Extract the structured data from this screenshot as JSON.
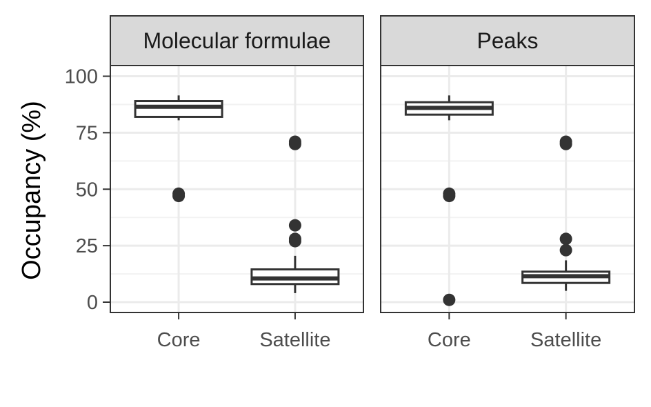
{
  "chart_data": {
    "type": "boxplot",
    "ylabel": "Occupancy (%)",
    "ylim": [
      -5,
      105
    ],
    "yticks": [
      0,
      25,
      50,
      75,
      100
    ],
    "categories": [
      "Core",
      "Satellite"
    ],
    "grid": true,
    "colors": {
      "strip_fill": "#d9d9d9",
      "border": "#333333",
      "grid_major": "#ebebeb",
      "grid_minor": "#f2f2f2",
      "box": "#333333"
    },
    "panels": [
      {
        "title": "Molecular formulae",
        "boxes": [
          {
            "category": "Core",
            "lower_whisker": 80.5,
            "q1": 82,
            "median": 86.5,
            "q3": 89,
            "upper_whisker": 91.5,
            "outliers": [
              47,
              48
            ]
          },
          {
            "category": "Satellite",
            "lower_whisker": 4,
            "q1": 8,
            "median": 10.5,
            "q3": 14.5,
            "upper_whisker": 20.5,
            "outliers": [
              27,
              28,
              34,
              70,
              71
            ]
          }
        ]
      },
      {
        "title": "Peaks",
        "boxes": [
          {
            "category": "Core",
            "lower_whisker": 80.5,
            "q1": 83,
            "median": 86,
            "q3": 88.5,
            "upper_whisker": 91.5,
            "outliers": [
              1,
              47,
              48
            ]
          },
          {
            "category": "Satellite",
            "lower_whisker": 5,
            "q1": 8.5,
            "median": 11.5,
            "q3": 13.5,
            "upper_whisker": 18.5,
            "outliers": [
              23,
              28,
              70,
              71
            ]
          }
        ]
      }
    ]
  }
}
